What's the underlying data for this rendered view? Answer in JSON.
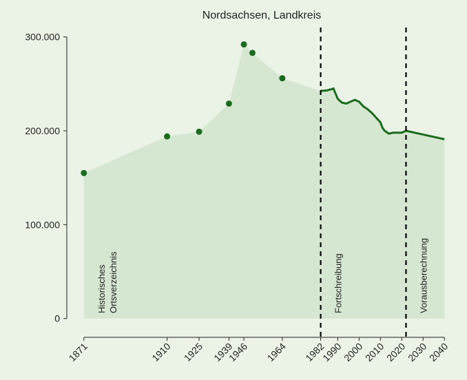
{
  "chart_data": {
    "type": "line",
    "title": "Nordsachsen, Landkreis",
    "background": "#ebf3e6",
    "area_color": "#d5e6d1",
    "series": [
      {
        "style": "points",
        "color": "#1a6b1e",
        "x": [
          1871,
          1910,
          1925,
          1939,
          1946,
          1950,
          1964
        ],
        "values": [
          155000,
          194000,
          199000,
          229000,
          292000,
          283000,
          256000
        ]
      },
      {
        "style": "line",
        "color": "#1a6b1e",
        "x": [
          1982,
          1985,
          1988,
          1990,
          1992,
          1994,
          1996,
          1998,
          2000,
          2002,
          2004,
          2006,
          2008,
          2010,
          2011,
          2012,
          2014,
          2016,
          2018,
          2020,
          2022,
          2024,
          2030,
          2040
        ],
        "values": [
          242500,
          243000,
          245000,
          234000,
          230000,
          229000,
          231000,
          233000,
          231000,
          226000,
          223000,
          219000,
          214000,
          209000,
          203000,
          200000,
          197000,
          198000,
          198000,
          198000,
          200000,
          199000,
          196000,
          191000
        ]
      }
    ],
    "xlim": [
      1863,
      2048
    ],
    "ylim": [
      -20000,
      310000
    ],
    "xticks": [
      1871,
      1910,
      1925,
      1939,
      1946,
      1964,
      1982,
      1990,
      2000,
      2010,
      2020,
      2030,
      2040
    ],
    "yticks": [
      0,
      {
        "value": 100000,
        "label": "100.000"
      },
      {
        "value": 200000,
        "label": "200.000"
      },
      {
        "value": 300000,
        "label": "300.000"
      }
    ],
    "vlines": [
      1982,
      2022
    ],
    "annotations": [
      [
        "Historisches",
        "Ortsverzeichnis"
      ],
      [
        "Fortschreibung"
      ],
      [
        "Vorausberechnung"
      ]
    ]
  }
}
